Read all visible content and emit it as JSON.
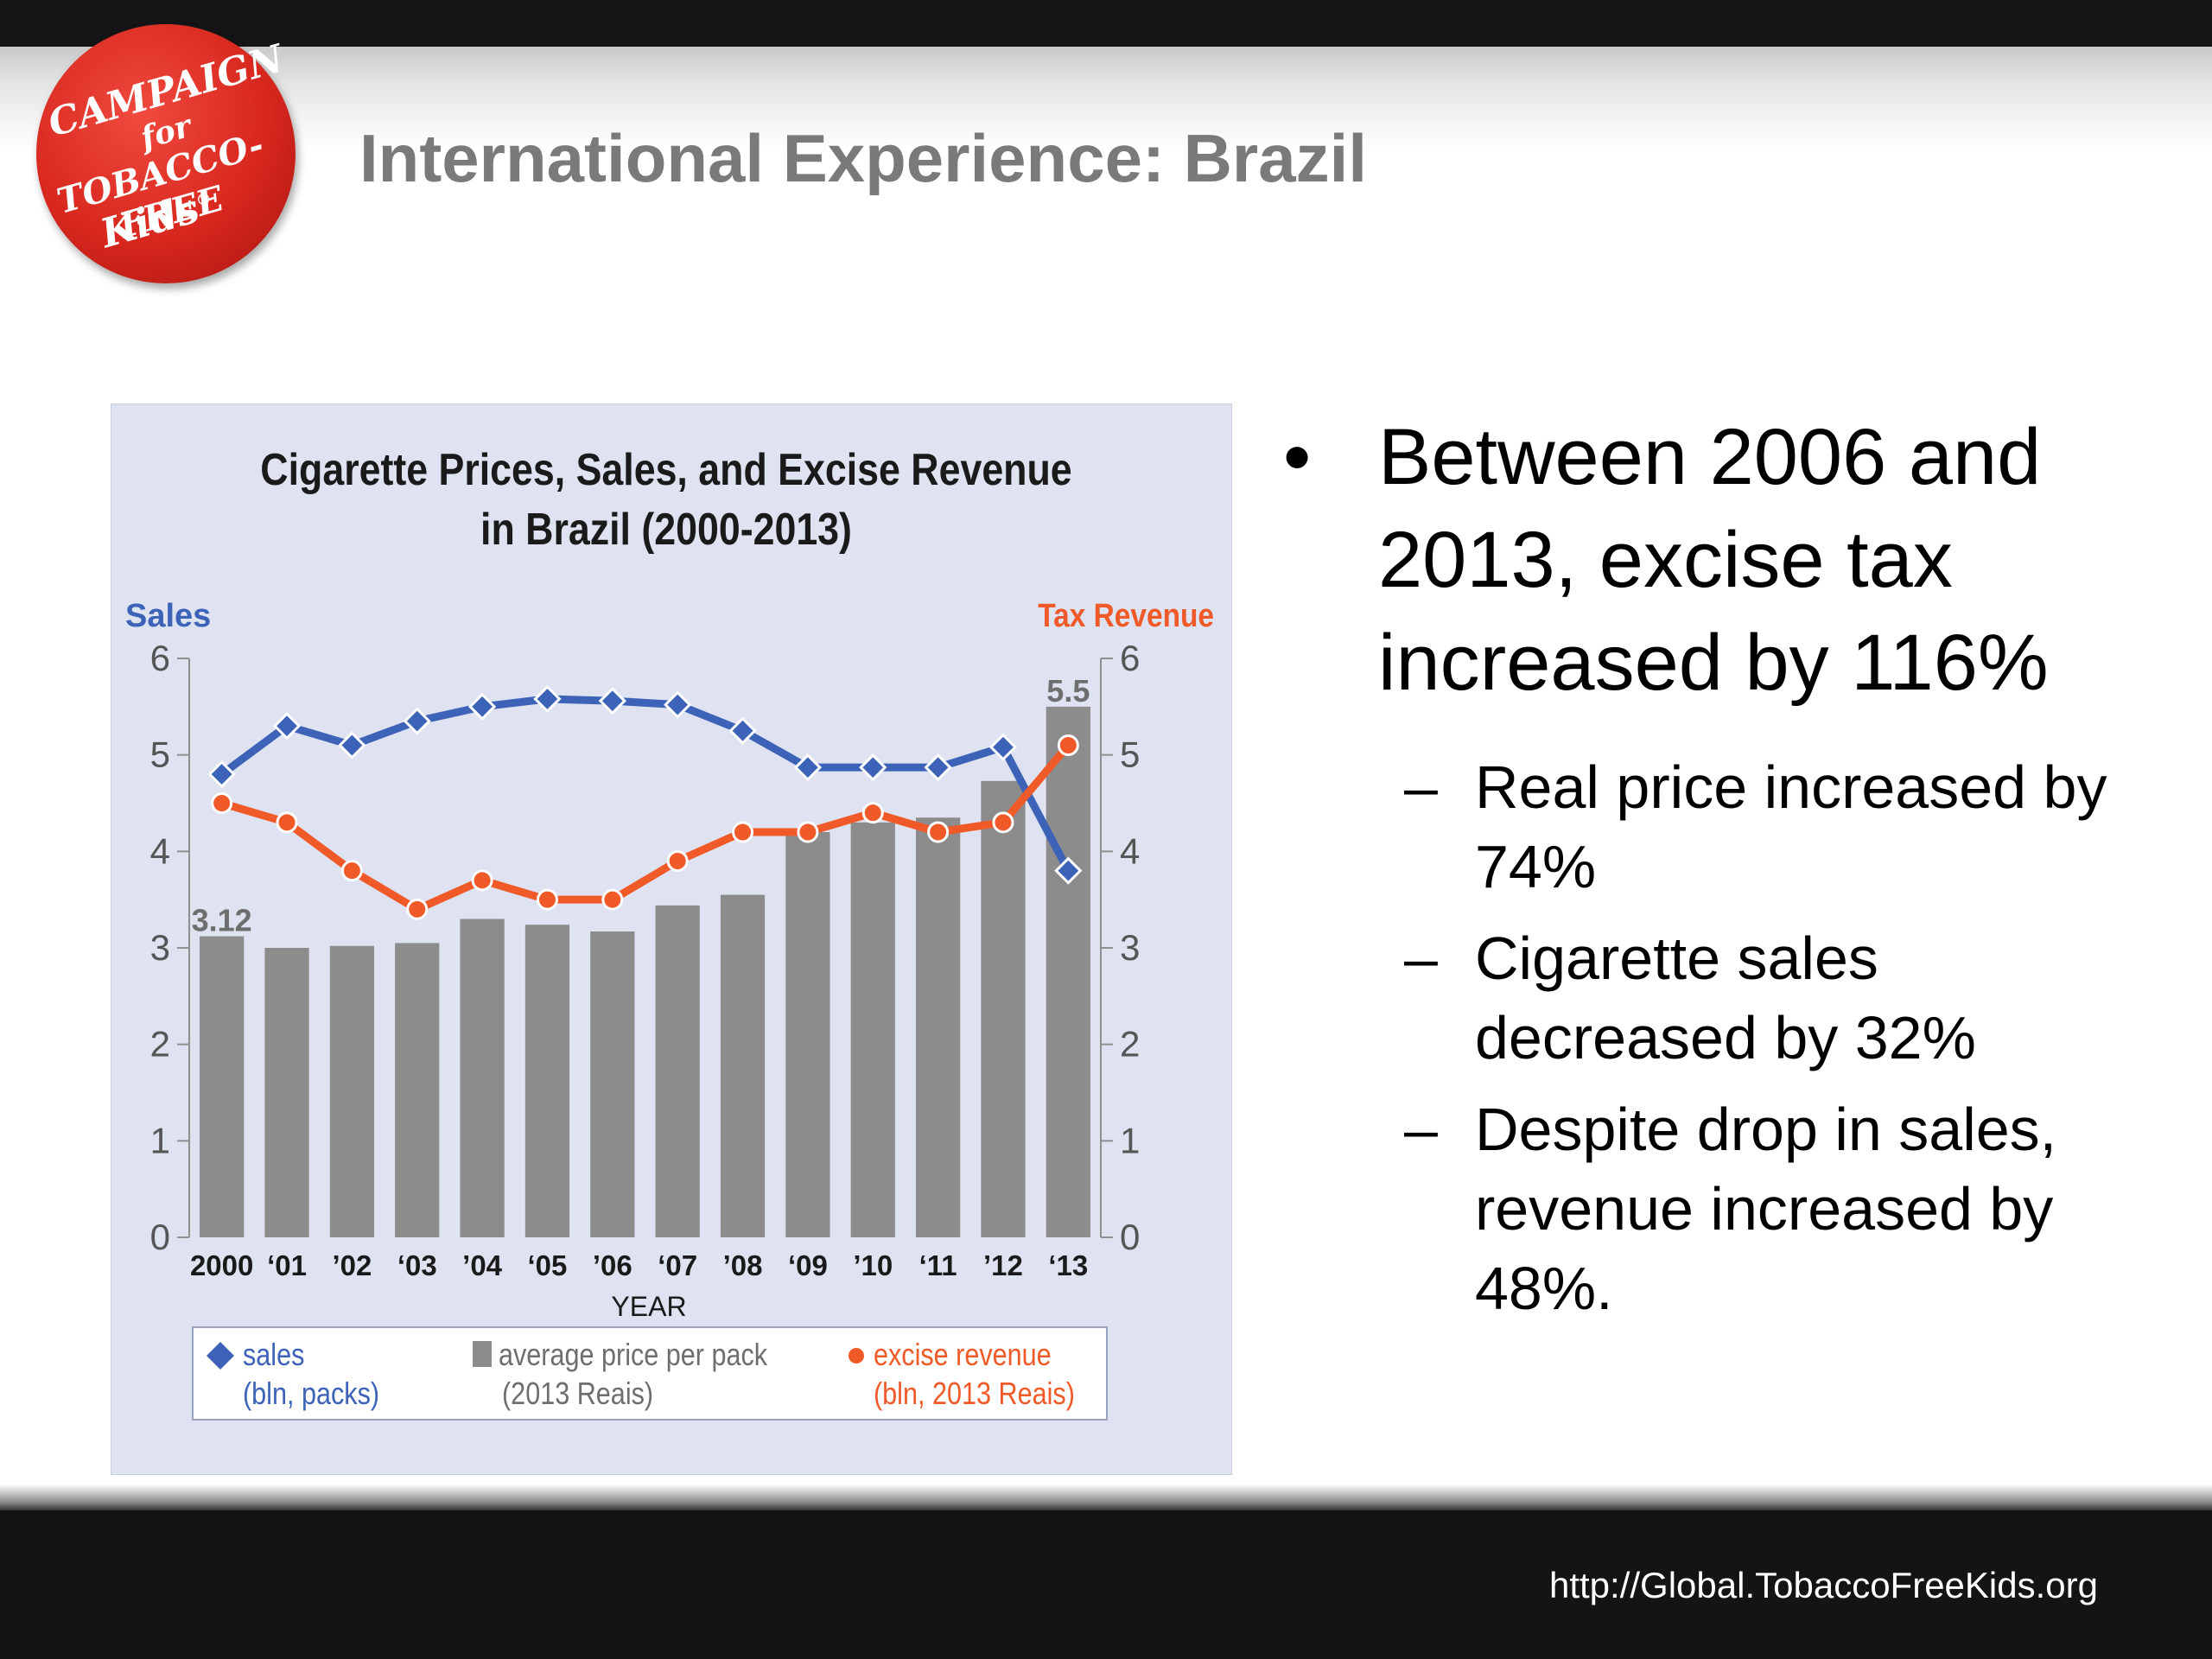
{
  "slide": {
    "title": "International Experience: Brazil",
    "footer_url": "http://Global.TobaccoFreeKids.org"
  },
  "logo": {
    "line1": "CAMPAIGN",
    "line2": "for",
    "line3": "TOBACCO-FREE",
    "line4": "Kids",
    "mark": "®"
  },
  "bullets": {
    "main": "Between 2006 and 2013, excise tax increased by 116%",
    "marker": "•",
    "dash": "–",
    "subs": [
      "Real price increased by 74%",
      "Cigarette sales decreased by 32%",
      "Despite drop in sales, revenue increased by 48%."
    ]
  },
  "chart_data": {
    "type": "bar",
    "title_line1": "Cigarette Prices, Sales, and Excise Revenue",
    "title_line2": "in Brazil (2000-2013)",
    "left_axis_label": "Sales",
    "right_axis_label": "Tax Revenue",
    "xlabel": "YEAR",
    "categories": [
      "2000",
      "‘01",
      "’02",
      "‘03",
      "’04",
      "‘05",
      "’06",
      "‘07",
      "’08",
      "‘09",
      "’10",
      "‘11",
      "’12",
      "‘13"
    ],
    "ylim": [
      0,
      6
    ],
    "yticks": [
      "0",
      "1",
      "2",
      "3",
      "4",
      "5",
      "6"
    ],
    "series": [
      {
        "name": "average price per pack (2013 Reais)",
        "kind": "bar",
        "color": "#8c8c8c",
        "values": [
          3.12,
          3.0,
          3.02,
          3.05,
          3.3,
          3.24,
          3.17,
          3.44,
          3.55,
          4.2,
          4.3,
          4.35,
          4.73,
          5.5
        ]
      },
      {
        "name": "sales (bln, packs)",
        "kind": "line",
        "marker": "diamond",
        "color": "#3d63b8",
        "values": [
          4.8,
          5.3,
          5.1,
          5.35,
          5.5,
          5.58,
          5.56,
          5.52,
          5.25,
          4.87,
          4.87,
          4.87,
          5.08,
          3.8
        ]
      },
      {
        "name": "excise revenue (bln, 2013 Reais)",
        "kind": "line",
        "marker": "circle",
        "color": "#f05a28",
        "values": [
          4.5,
          4.3,
          3.8,
          3.4,
          3.7,
          3.5,
          3.5,
          3.9,
          4.2,
          4.2,
          4.4,
          4.2,
          4.3,
          5.1
        ]
      }
    ],
    "data_labels": {
      "first_bar": "3.12",
      "last_bar": "5.5"
    },
    "legend": {
      "placement": "bottom",
      "sales_line1": "sales",
      "sales_line2": "(bln, packs)",
      "price_line1": "average price per pack",
      "price_line2": "(2013 Reais)",
      "revenue_line1": "excise revenue",
      "revenue_line2": "(bln, 2013 Reais)"
    },
    "grid": false
  }
}
